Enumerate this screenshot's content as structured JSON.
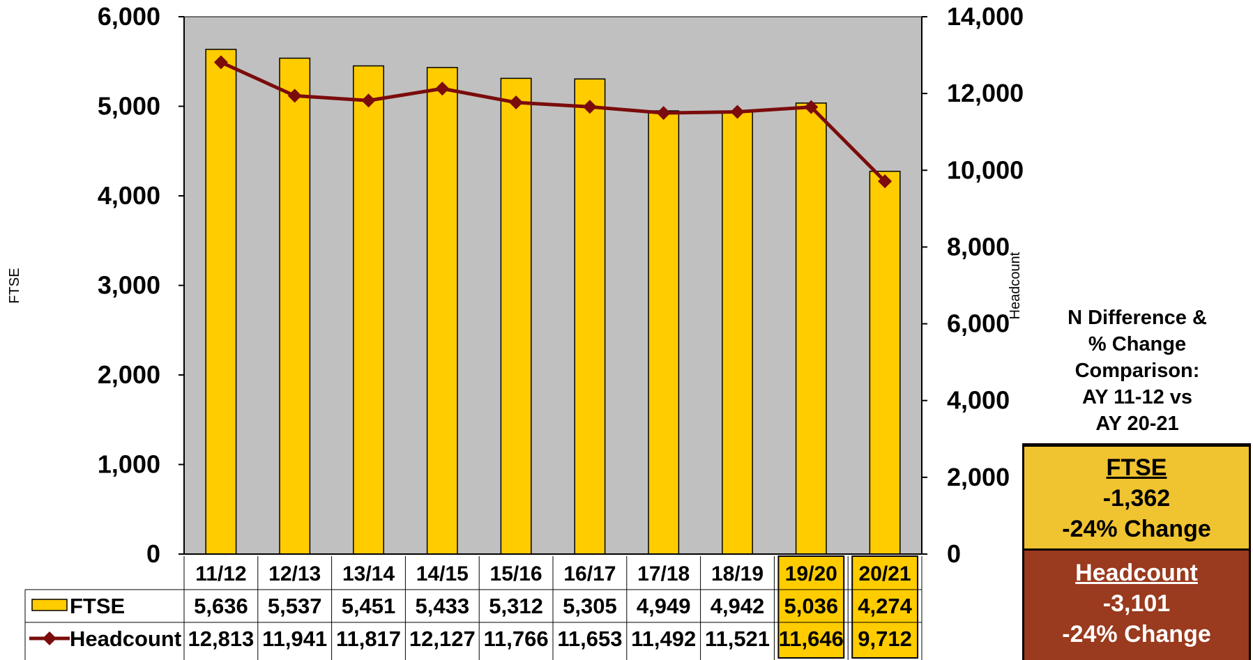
{
  "chart_data": {
    "type": "bar+line",
    "categories": [
      "11/12",
      "12/13",
      "13/14",
      "14/15",
      "15/16",
      "16/17",
      "17/18",
      "18/19",
      "19/20",
      "20/21"
    ],
    "highlighted_categories": [
      "19/20",
      "20/21"
    ],
    "series": [
      {
        "name": "FTSE",
        "type": "bar",
        "axis": "left",
        "color": "#ffcc00",
        "values": [
          5636,
          5537,
          5451,
          5433,
          5312,
          5305,
          4949,
          4942,
          5036,
          4274
        ],
        "labels": [
          "5,636",
          "5,537",
          "5,451",
          "5,433",
          "5,312",
          "5,305",
          "4,949",
          "4,942",
          "5,036",
          "4,274"
        ]
      },
      {
        "name": "Headcount",
        "type": "line",
        "axis": "right",
        "color": "#7b0c0c",
        "values": [
          12813,
          11941,
          11817,
          12127,
          11766,
          11653,
          11492,
          11521,
          11646,
          9712
        ],
        "labels": [
          "12,813",
          "11,941",
          "11,817",
          "12,127",
          "11,766",
          "11,653",
          "11,492",
          "11,521",
          "11,646",
          "9,712"
        ]
      }
    ],
    "y_left": {
      "label": "FTSE",
      "range": [
        0,
        6000
      ],
      "ticks": [
        "0",
        "1,000",
        "2,000",
        "3,000",
        "4,000",
        "5,000",
        "6,000"
      ]
    },
    "y_right": {
      "label": "Headcount",
      "range": [
        0,
        14000
      ],
      "ticks": [
        "0",
        "2,000",
        "4,000",
        "6,000",
        "8,000",
        "10,000",
        "12,000",
        "14,000"
      ]
    },
    "plot_background": "#c0c0c0",
    "legend": "data-table",
    "grid": false
  },
  "comparison": {
    "title_lines": [
      "N Difference &",
      "% Change",
      "Comparison:",
      "AY 11-12 vs",
      "AY 20-21"
    ],
    "ftse": {
      "heading": "FTSE",
      "difference": "-1,362",
      "change": "-24% Change",
      "color": "#f0c330"
    },
    "headcount": {
      "heading": "Headcount",
      "difference": "-3,101",
      "change": "-24% Change",
      "color": "#9a3a1e"
    }
  }
}
